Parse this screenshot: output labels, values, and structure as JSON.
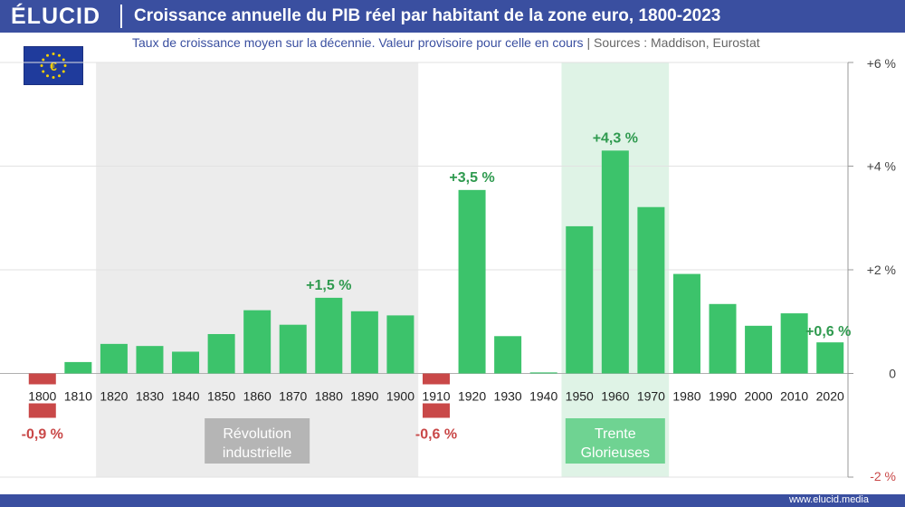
{
  "header": {
    "logo": "ÉLUCID",
    "title": "Croissance annuelle du PIB réel par habitant de la zone euro, 1800-2023",
    "subtitle": "Taux de croissance moyen sur la décennie. Valeur provisoire pour celle en cours",
    "sources": "|  Sources :  Maddison, Eurostat"
  },
  "footer": {
    "url": "www.elucid.media"
  },
  "flag": {
    "name": "eu-flag",
    "symbol": "€"
  },
  "colors": {
    "header": "#3a4fa0",
    "positive": "#3cc36b",
    "negative": "#c94848",
    "label_positive": "#2f9a4f",
    "label_negative": "#c94848",
    "shade_revolution": "#ececec",
    "shade_trente": "#dff3e6"
  },
  "chart_data": {
    "type": "bar",
    "title": "Croissance annuelle du PIB réel par habitant de la zone euro, 1800-2023",
    "xlabel": "",
    "ylabel": "",
    "ylim": [
      -2,
      6
    ],
    "yticks": [
      {
        "value": 6,
        "label": "+6 %"
      },
      {
        "value": 4,
        "label": "+4 %"
      },
      {
        "value": 2,
        "label": "+2 %"
      },
      {
        "value": 0,
        "label": "0"
      },
      {
        "value": -2,
        "label": "-2 %"
      }
    ],
    "categories": [
      "1800",
      "1810",
      "1820",
      "1830",
      "1840",
      "1850",
      "1860",
      "1870",
      "1880",
      "1890",
      "1900",
      "1910",
      "1920",
      "1930",
      "1940",
      "1950",
      "1960",
      "1970",
      "1980",
      "1990",
      "2000",
      "2010",
      "2020"
    ],
    "values": [
      -0.9,
      0.22,
      0.57,
      0.53,
      0.42,
      0.76,
      1.22,
      0.94,
      1.46,
      1.2,
      1.12,
      -0.6,
      3.54,
      0.72,
      0.02,
      2.84,
      4.3,
      3.21,
      1.92,
      1.34,
      0.92,
      1.16,
      0.6
    ],
    "value_labels": [
      {
        "category": "1800",
        "text": "-0,9 %"
      },
      {
        "category": "1880",
        "text": "+1,5 %"
      },
      {
        "category": "1910",
        "text": "-0,6 %"
      },
      {
        "category": "1920",
        "text": "+3,5 %"
      },
      {
        "category": "1960",
        "text": "+4,3 %"
      },
      {
        "category": "2020",
        "text": "+0,6 %"
      }
    ],
    "shaded_periods": [
      {
        "from": "1820",
        "to": "1900",
        "label_line1": "Révolution",
        "label_line2": "industrielle",
        "color": "#ececec",
        "label_bg": "#b5b5b5"
      },
      {
        "from": "1950",
        "to": "1970",
        "label_line1": "Trente",
        "label_line2": "Glorieuses",
        "color": "#dff3e6",
        "label_bg": "#6fd392"
      }
    ],
    "grid": true
  }
}
